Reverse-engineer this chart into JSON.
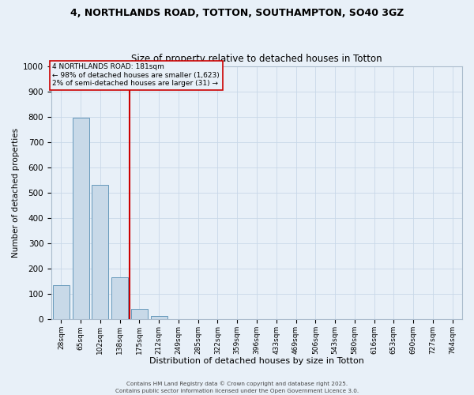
{
  "title_line1": "4, NORTHLANDS ROAD, TOTTON, SOUTHAMPTON, SO40 3GZ",
  "title_line2": "Size of property relative to detached houses in Totton",
  "xlabel": "Distribution of detached houses by size in Totton",
  "ylabel": "Number of detached properties",
  "categories": [
    "28sqm",
    "65sqm",
    "102sqm",
    "138sqm",
    "175sqm",
    "212sqm",
    "249sqm",
    "285sqm",
    "322sqm",
    "359sqm",
    "396sqm",
    "433sqm",
    "469sqm",
    "506sqm",
    "543sqm",
    "580sqm",
    "616sqm",
    "653sqm",
    "690sqm",
    "727sqm",
    "764sqm"
  ],
  "values": [
    135,
    795,
    530,
    165,
    40,
    12,
    0,
    0,
    0,
    0,
    0,
    0,
    0,
    0,
    0,
    0,
    0,
    0,
    0,
    0,
    0
  ],
  "bar_color": "#c8d9e8",
  "bar_edge_color": "#6699bb",
  "ylim": [
    0,
    1000
  ],
  "yticks": [
    0,
    100,
    200,
    300,
    400,
    500,
    600,
    700,
    800,
    900,
    1000
  ],
  "property_line_x": 3.5,
  "property_line_color": "#cc0000",
  "annotation_text": "4 NORTHLANDS ROAD: 181sqm\n← 98% of detached houses are smaller (1,623)\n2% of semi-detached houses are larger (31) →",
  "annotation_box_color": "#cc0000",
  "annotation_text_color": "#000000",
  "grid_color": "#c8d8e8",
  "bg_color": "#e8f0f8",
  "footer_line1": "Contains HM Land Registry data © Crown copyright and database right 2025.",
  "footer_line2": "Contains public sector information licensed under the Open Government Licence 3.0."
}
